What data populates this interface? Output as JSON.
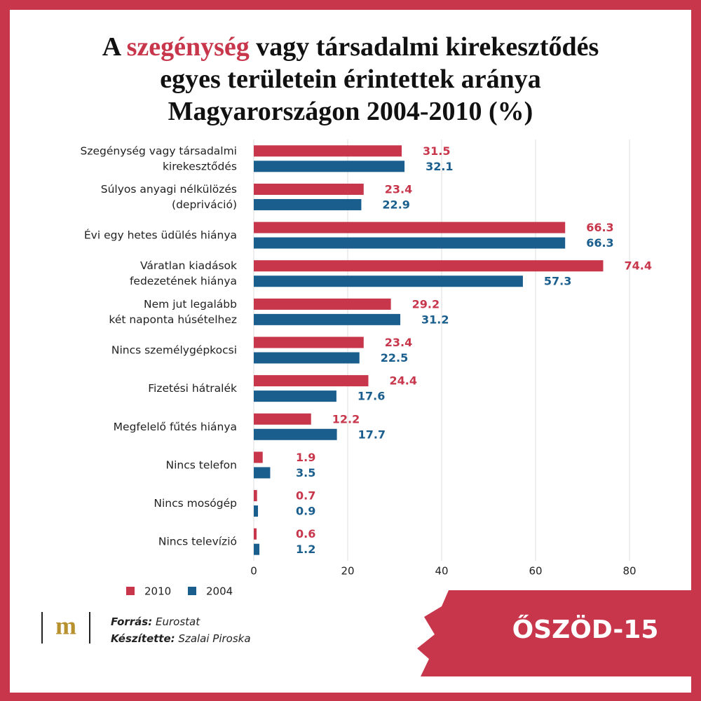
{
  "chart_data": {
    "type": "bar",
    "orientation": "horizontal",
    "title": [
      [
        "A ",
        "szegénység",
        " vagy társadalmi kirekesztődés"
      ],
      [
        "egyes területein érintettek aránya"
      ],
      [
        "Magyarországon 2004-2010 (%)"
      ]
    ],
    "title_highlight_color": "#c8364b",
    "categories": [
      "Szegénység vagy társadalmi\nkirekesztődés",
      "Súlyos anyagi nélkülözés\n(depriváció)",
      "Évi egy hetes üdülés hiánya",
      "Váratlan kiadások\nfedezetének hiánya",
      "Nem jut legalább\nkét naponta húsételhez",
      "Nincs személygépkocsi",
      "Fizetési hátralék",
      "Megfelelő fűtés hiánya",
      "Nincs telefon",
      "Nincs mosógép",
      "Nincs televízió"
    ],
    "series": [
      {
        "name": "2010",
        "color": "#c8364b",
        "values": [
          31.5,
          23.4,
          66.3,
          74.4,
          29.2,
          23.4,
          24.4,
          12.2,
          1.9,
          0.7,
          0.6
        ]
      },
      {
        "name": "2004",
        "color": "#1a5e8e",
        "values": [
          32.1,
          22.9,
          66.3,
          57.3,
          31.2,
          22.5,
          17.6,
          17.7,
          3.5,
          0.9,
          1.2
        ]
      }
    ],
    "xlim": [
      0,
      90
    ],
    "xticks": [
      0,
      20,
      40,
      60,
      80
    ],
    "grid": true,
    "legend": "bottom-left"
  },
  "footer": {
    "logo": "m",
    "source": {
      "label": "Forrás:",
      "value": "Eurostat"
    },
    "author": {
      "label": "Készítette:",
      "value": "Szalai Piroska"
    },
    "brand": "ŐSZÖD-15"
  }
}
